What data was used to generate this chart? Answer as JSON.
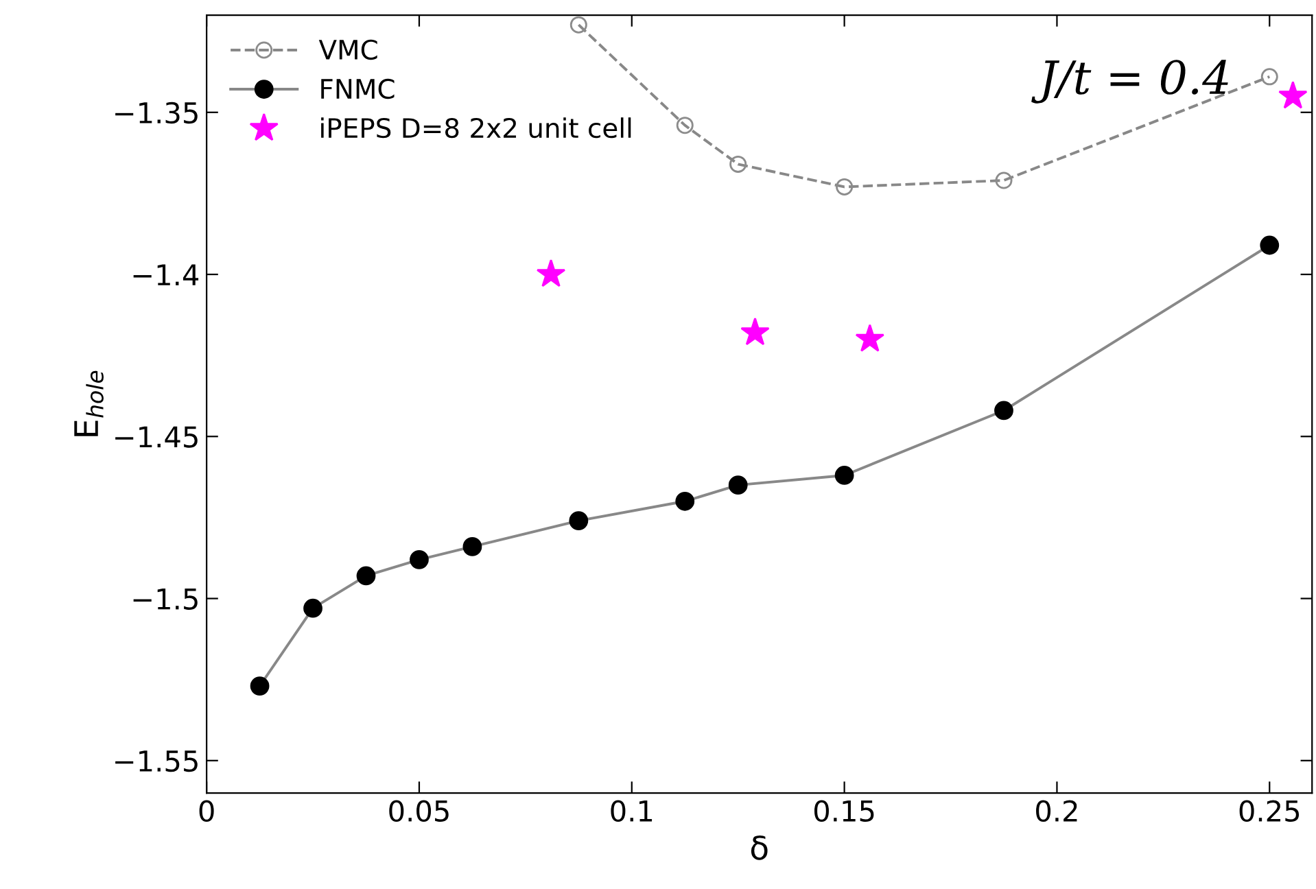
{
  "chart_data": {
    "type": "line",
    "xlabel": "δ",
    "ylabel": "E$_{hole}$",
    "annotations": [
      "J/t = 0.4"
    ],
    "xlim": [
      0,
      0.26
    ],
    "ylim": [
      -1.56,
      -1.32
    ],
    "xticks": [
      0,
      0.05,
      0.1,
      0.15,
      0.2,
      0.25
    ],
    "yticks": [
      -1.35,
      -1.4,
      -1.45,
      -1.5,
      -1.55
    ],
    "grid": false,
    "legend": "top left",
    "series": [
      {
        "name": "VMC",
        "color": "#8c8c8c",
        "marker": "circle",
        "line_style": "dashed",
        "x": [
          0.0875,
          0.1125,
          0.125,
          0.15,
          0.1875,
          0.25
        ],
        "values": [
          -1.323,
          -1.354,
          -1.366,
          -1.373,
          -1.371,
          -1.339
        ]
      },
      {
        "name": "FNMC",
        "color": "#000000",
        "marker": "circle",
        "line_style": "solid",
        "x": [
          0.0125,
          0.025,
          0.0375,
          0.05,
          0.0625,
          0.0875,
          0.1125,
          0.125,
          0.15,
          0.1875,
          0.25
        ],
        "values": [
          -1.527,
          -1.503,
          -1.493,
          -1.488,
          -1.484,
          -1.476,
          -1.47,
          -1.465,
          -1.462,
          -1.442,
          -1.391
        ]
      },
      {
        "name": "iPEPS D=8 2x2 unit cell",
        "type": "scatter",
        "color": "#ff00ff",
        "marker": "star",
        "x": [
          0.081,
          0.129,
          0.156,
          0.2555
        ],
        "values": [
          -1.4,
          -1.418,
          -1.42,
          -1.345
        ]
      }
    ]
  }
}
